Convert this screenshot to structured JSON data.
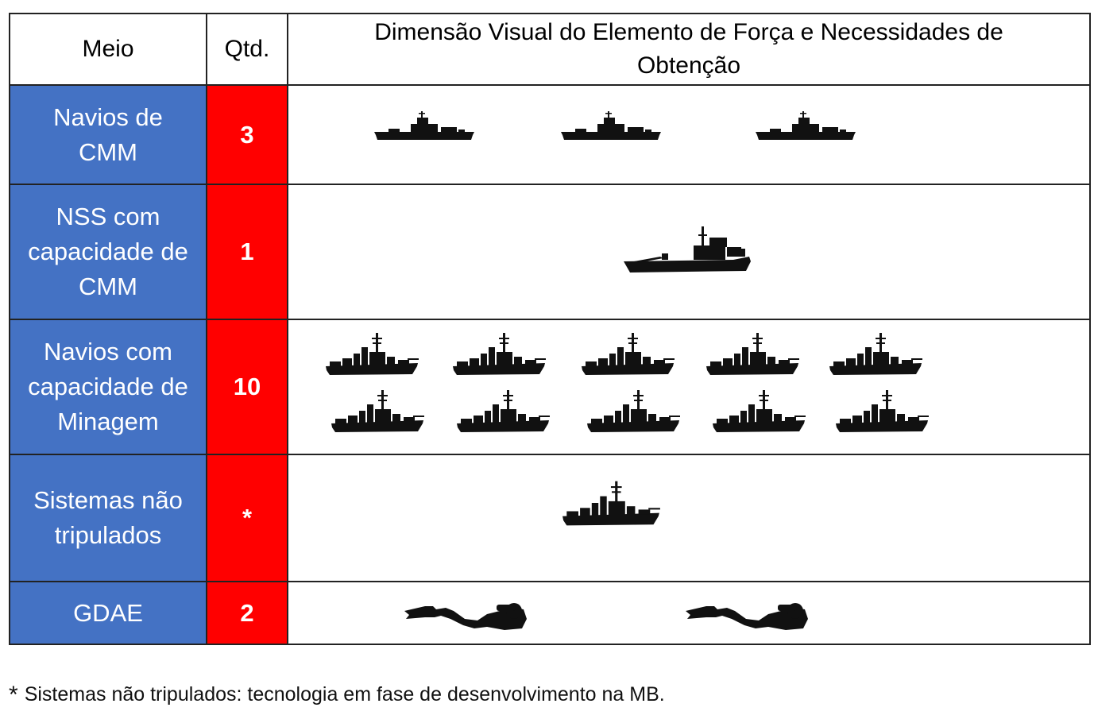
{
  "header": {
    "meio": "Meio",
    "qtd": "Qtd.",
    "visual": "Dimensão Visual do Elemento de Força e Necessidades de Obtenção"
  },
  "rows": [
    {
      "meio": "Navios de CMM",
      "qtd": "3",
      "icon": "mine-countermeasure-ship-icon",
      "icon_count": 3
    },
    {
      "meio": "NSS com capacidade de CMM",
      "qtd": "1",
      "icon": "support-ship-icon",
      "icon_count": 1
    },
    {
      "meio": "Navios com capacidade de Minagem",
      "qtd": "10",
      "icon": "warship-icon",
      "icon_count": 10
    },
    {
      "meio": "Sistemas não tripulados",
      "qtd": "*",
      "icon": "warship-icon",
      "icon_count": 1
    },
    {
      "meio": "GDAE",
      "qtd": "2",
      "icon": "diver-icon",
      "icon_count": 2
    }
  ],
  "footnote": {
    "marker": "*",
    "text": "Sistemas não tripulados: tecnologia em fase de desenvolvimento na MB."
  },
  "colors": {
    "meio_bg": "#4472c4",
    "qtd_bg": "#ff0000",
    "text_on_color": "#ffffff",
    "border": "#222222",
    "icon_fill": "#111111"
  }
}
